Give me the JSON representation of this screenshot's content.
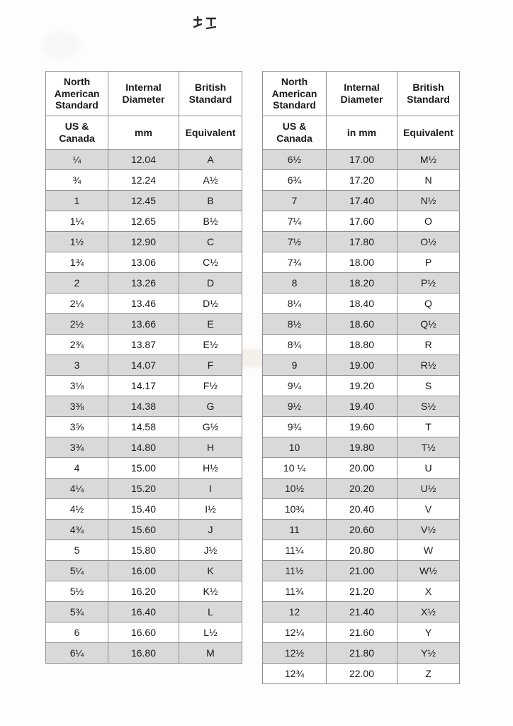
{
  "colors": {
    "row_shaded": "#d9d9d9",
    "border": "#8f8f8f",
    "text": "#1a1a1a",
    "page_bg": "#fdfdfd"
  },
  "tables": [
    {
      "name": "left",
      "columns": [
        {
          "title": "North American Standard",
          "subtitle": "US & Canada"
        },
        {
          "title": "Internal Diameter",
          "subtitle": "mm"
        },
        {
          "title": "British Standard",
          "subtitle": "Equivalent"
        }
      ],
      "rows": [
        [
          "¼",
          "12.04",
          "A"
        ],
        [
          "¾",
          "12.24",
          "A½"
        ],
        [
          "1",
          "12.45",
          "B"
        ],
        [
          "1¼",
          "12.65",
          "B½"
        ],
        [
          "1½",
          "12.90",
          "C"
        ],
        [
          "1¾",
          "13.06",
          "C½"
        ],
        [
          "2",
          "13.26",
          "D"
        ],
        [
          "2¼",
          "13.46",
          "D½"
        ],
        [
          "2½",
          "13.66",
          "E"
        ],
        [
          "2¾",
          "13.87",
          "E½"
        ],
        [
          "3",
          "14.07",
          "F"
        ],
        [
          "3⅛",
          "14.17",
          "F½"
        ],
        [
          "3⅜",
          "14.38",
          "G"
        ],
        [
          "3⅝",
          "14.58",
          "G½"
        ],
        [
          "3¾",
          "14.80",
          "H"
        ],
        [
          "4",
          "15.00",
          "H½"
        ],
        [
          "4¼",
          "15.20",
          "I"
        ],
        [
          "4½",
          "15.40",
          "I½"
        ],
        [
          "4¾",
          "15.60",
          "J"
        ],
        [
          "5",
          "15.80",
          "J½"
        ],
        [
          "5¼",
          "16.00",
          "K"
        ],
        [
          "5½",
          "16.20",
          "K½"
        ],
        [
          "5¾",
          "16.40",
          "L"
        ],
        [
          "6",
          "16.60",
          "L½"
        ],
        [
          "6¼",
          "16.80",
          "M"
        ]
      ]
    },
    {
      "name": "right",
      "columns": [
        {
          "title": "North American Standard",
          "subtitle": "US & Canada"
        },
        {
          "title": "Internal Diameter",
          "subtitle": "in mm"
        },
        {
          "title": "British Standard",
          "subtitle": "Equivalent"
        }
      ],
      "rows": [
        [
          "6½",
          "17.00",
          "M½"
        ],
        [
          "6¾",
          "17.20",
          "N"
        ],
        [
          "7",
          "17.40",
          "N½"
        ],
        [
          "7¼",
          "17.60",
          "O"
        ],
        [
          "7½",
          "17.80",
          "O½"
        ],
        [
          "7¾",
          "18.00",
          "P"
        ],
        [
          "8",
          "18.20",
          "P½"
        ],
        [
          "8¼",
          "18.40",
          "Q"
        ],
        [
          "8½",
          "18.60",
          "Q½"
        ],
        [
          "8¾",
          "18.80",
          "R"
        ],
        [
          "9",
          "19.00",
          "R½"
        ],
        [
          "9¼",
          "19.20",
          "S"
        ],
        [
          "9½",
          "19.40",
          "S½"
        ],
        [
          "9¾",
          "19.60",
          "T"
        ],
        [
          "10",
          "19.80",
          "T½"
        ],
        [
          "10 ¼",
          "20.00",
          "U"
        ],
        [
          "10½",
          "20.20",
          "U½"
        ],
        [
          "10¾",
          "20.40",
          "V"
        ],
        [
          "11",
          "20.60",
          "V½"
        ],
        [
          "11¼",
          "20.80",
          "W"
        ],
        [
          "11½",
          "21.00",
          "W½"
        ],
        [
          "11¾",
          "21.20",
          "X"
        ],
        [
          "12",
          "21.40",
          "X½"
        ],
        [
          "12¼",
          "21.60",
          "Y"
        ],
        [
          "12½",
          "21.80",
          "Y½"
        ],
        [
          "12¾",
          "22.00",
          "Z"
        ]
      ]
    }
  ]
}
